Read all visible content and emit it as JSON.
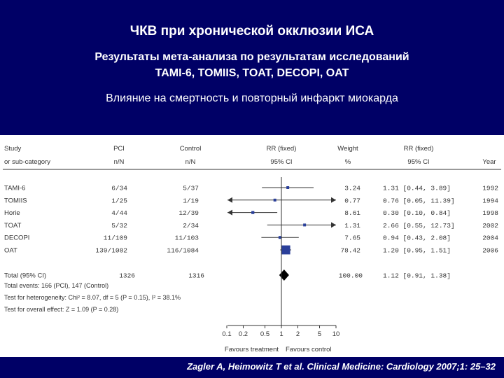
{
  "title": "ЧКВ при хронической окклюзии ИСА",
  "subtitle_line1": "Результаты мета-анализа по результатам исследований",
  "subtitle_line2": "TAMI-6, TOMIIS, TOAT, DECOPI, OAT",
  "subtitle2": "Влияние на смертность и повторный инфаркт миокарда",
  "citation": "Zagler A, Heimowitz T et al. Clinical Medicine: Cardiology 2007;1: 25–32",
  "chart_data": {
    "type": "forest",
    "scale": "log",
    "x_ticks": [
      0.1,
      0.2,
      0.5,
      1,
      2,
      5,
      10
    ],
    "x_tick_labels": [
      "0.1",
      "0.2",
      "0.5",
      "1",
      "2",
      "5",
      "10"
    ],
    "xlim": [
      0.1,
      10
    ],
    "favours_left": "Favours treatment",
    "favours_right": "Favours control",
    "headers": {
      "study": [
        "Study",
        "or sub-category"
      ],
      "pci": [
        "PCI",
        "n/N"
      ],
      "control": [
        "Control",
        "n/N"
      ],
      "rr_plot": [
        "RR (fixed)",
        "95% CI"
      ],
      "weight": [
        "Weight",
        "%"
      ],
      "rr_text": [
        "RR (fixed)",
        "95% CI"
      ],
      "year": [
        "",
        "Year"
      ]
    },
    "studies": [
      {
        "name": "TAMI-6",
        "pci": "6/34",
        "control": "5/37",
        "weight": "3.24",
        "ci_text": "1.31 [0.44, 3.89]",
        "year": "1992",
        "rr": 1.31,
        "lo": 0.44,
        "hi": 3.89
      },
      {
        "name": "TOMIIS",
        "pci": "1/25",
        "control": "1/19",
        "weight": "0.77",
        "ci_text": "0.76 [0.05, 11.39]",
        "year": "1994",
        "rr": 0.76,
        "lo": 0.05,
        "hi": 11.39
      },
      {
        "name": "Horie",
        "pci": "4/44",
        "control": "12/39",
        "weight": "8.61",
        "ci_text": "0.30 [0.10, 0.84]",
        "year": "1998",
        "rr": 0.3,
        "lo": 0.1,
        "hi": 0.84
      },
      {
        "name": "TOAT",
        "pci": "5/32",
        "control": "2/34",
        "weight": "1.31",
        "ci_text": "2.66 [0.55, 12.73]",
        "year": "2002",
        "rr": 2.66,
        "lo": 0.55,
        "hi": 12.73
      },
      {
        "name": "DECOPI",
        "pci": "11/109",
        "control": "11/103",
        "weight": "7.65",
        "ci_text": "0.94 [0.43, 2.08]",
        "year": "2004",
        "rr": 0.94,
        "lo": 0.43,
        "hi": 2.08
      },
      {
        "name": "OAT",
        "pci": "139/1082",
        "control": "116/1084",
        "weight": "78.42",
        "ci_text": "1.20 [0.95, 1.51]",
        "year": "2006",
        "rr": 1.2,
        "lo": 0.95,
        "hi": 1.51
      }
    ],
    "total": {
      "name": "Total (95% CI)",
      "pci": "1326",
      "control": "1316",
      "weight": "100.00",
      "ci_text": "1.12 [0.91, 1.38]",
      "rr": 1.12,
      "lo": 0.91,
      "hi": 1.38
    },
    "footnotes": [
      "Total events: 166 (PCI), 147 (Control)",
      "Test for heterogeneity: Chi² = 8.07, df = 5 (P = 0.15), I² = 38.1%",
      "Test for overall effect: Z = 1.09 (P = 0.28)"
    ]
  }
}
